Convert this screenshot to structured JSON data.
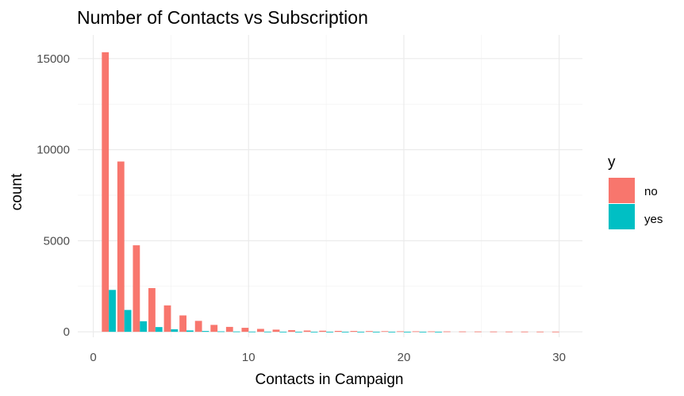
{
  "chart_data": {
    "type": "bar",
    "title": "Number of Contacts vs Subscription",
    "xlabel": "Contacts in Campaign",
    "ylabel": "count",
    "xlim": [
      -1,
      31.5
    ],
    "ylim": [
      -300,
      16300
    ],
    "x_ticks": [
      0,
      10,
      20,
      30
    ],
    "y_ticks": [
      0,
      5000,
      10000,
      15000
    ],
    "grid": true,
    "legend": {
      "title": "y",
      "position": "right"
    },
    "x": [
      1,
      2,
      3,
      4,
      5,
      6,
      7,
      8,
      9,
      10,
      11,
      12,
      13,
      14,
      15,
      16,
      17,
      18,
      19,
      20,
      21,
      22,
      23,
      24,
      25,
      26,
      27,
      28,
      29,
      30
    ],
    "series": [
      {
        "name": "no",
        "color": "#F8766D",
        "values": [
          15350,
          9350,
          4750,
          2400,
          1450,
          900,
          600,
          380,
          270,
          220,
          160,
          120,
          90,
          70,
          60,
          50,
          45,
          40,
          35,
          30,
          28,
          25,
          22,
          20,
          18,
          16,
          14,
          13,
          12,
          10
        ]
      },
      {
        "name": "yes",
        "color": "#00BFC4",
        "values": [
          2300,
          1200,
          580,
          260,
          140,
          75,
          45,
          25,
          18,
          12,
          10,
          6,
          5,
          4,
          3,
          2,
          2,
          1,
          1,
          1,
          1,
          1,
          0,
          0,
          0,
          0,
          0,
          0,
          0,
          0
        ]
      }
    ]
  }
}
